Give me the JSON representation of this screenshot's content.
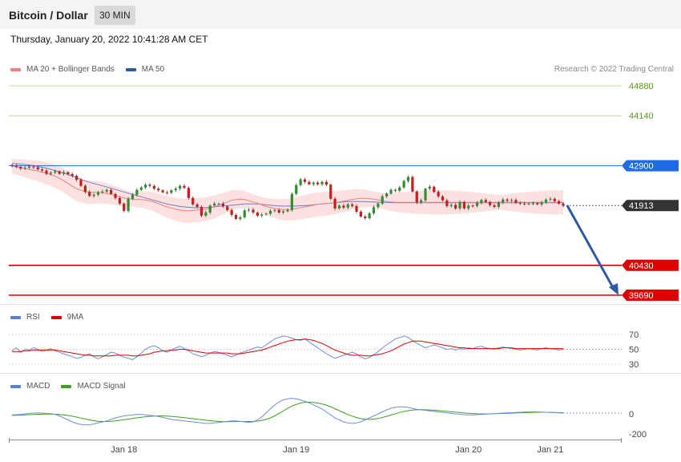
{
  "header": {
    "title": "Bitcoin / Dollar",
    "timeframe": "30 MIN"
  },
  "date_label": "Thursday, January 20, 2022 10:41:28 AM CET",
  "credit": "Research © 2022 Trading Central",
  "legends": {
    "price": [
      {
        "label": "MA 20 + Bollinger Bands",
        "color": "#f08080"
      },
      {
        "label": "MA 50",
        "color": "#2f5aa0"
      }
    ],
    "rsi": [
      {
        "label": "RSI",
        "color": "#5b7fd6"
      },
      {
        "label": "9MA",
        "color": "#e00000"
      }
    ],
    "macd": [
      {
        "label": "MACD",
        "color": "#5b7fd6"
      },
      {
        "label": "MACD Signal",
        "color": "#3aa020"
      }
    ]
  },
  "chart_data": [
    {
      "type": "candlestick",
      "panel": "price",
      "ylim": [
        39500,
        45000
      ],
      "current_price": "41913",
      "levels": [
        {
          "value": 44880,
          "label": "44880",
          "style": "resistance-light",
          "color": "#5a9a20"
        },
        {
          "value": 44140,
          "label": "44140",
          "style": "resistance-light",
          "color": "#5a9a20"
        },
        {
          "value": 42900,
          "label": "42900",
          "style": "pivot",
          "color": "#1e6be6"
        },
        {
          "value": 40430,
          "label": "40430",
          "style": "support",
          "color": "#e00000"
        },
        {
          "value": 39690,
          "label": "39690",
          "style": "support",
          "color": "#e00000"
        }
      ],
      "arrow": {
        "from": 41913,
        "to": 39690,
        "direction": "down",
        "color": "#2f5aa0"
      },
      "closes": [
        42900,
        42870,
        42830,
        42850,
        42880,
        42860,
        42810,
        42780,
        42700,
        42730,
        42760,
        42700,
        42740,
        42690,
        42650,
        42550,
        42400,
        42250,
        42150,
        42180,
        42240,
        42260,
        42300,
        42200,
        42100,
        41960,
        41780,
        42080,
        42180,
        42300,
        42360,
        42430,
        42400,
        42330,
        42290,
        42240,
        42230,
        42290,
        42330,
        42400,
        42350,
        42100,
        41940,
        41880,
        41660,
        41740,
        41910,
        41960,
        41960,
        41890,
        41800,
        41680,
        41580,
        41620,
        41790,
        41810,
        41740,
        41660,
        41690,
        41710,
        41780,
        41800,
        41740,
        41770,
        41800,
        42200,
        42420,
        42560,
        42500,
        42440,
        42480,
        42440,
        42500,
        42430,
        42080,
        41840,
        41910,
        41860,
        41940,
        41900,
        41760,
        41640,
        41600,
        41720,
        41870,
        41960,
        42140,
        42210,
        42300,
        42280,
        42360,
        42520,
        42620,
        42260,
        41990,
        42040,
        42330,
        42380,
        42250,
        42140,
        42040,
        41900,
        41930,
        41840,
        42000,
        41840,
        41910,
        41900,
        41980,
        42050,
        42000,
        41920,
        41880,
        41990,
        42060,
        42030,
        42050,
        41980,
        41960,
        41950,
        41960,
        41970,
        41940,
        41990,
        42060,
        42080,
        42020,
        41960,
        41913
      ],
      "ma20": [
        42890,
        42870,
        42850,
        42830,
        42810,
        42790,
        42770,
        42740,
        42710,
        42680,
        42640,
        42590,
        42530,
        42460,
        42390,
        42330,
        42290,
        42260,
        42240,
        42240,
        42240,
        42230,
        42210,
        42190,
        42160,
        42130,
        42100,
        42080,
        42070,
        42060,
        42060,
        42050,
        42030,
        42000,
        41960,
        41920,
        41880,
        41850,
        41820,
        41800,
        41780,
        41780,
        41790,
        41800,
        41810,
        41820,
        41850,
        41880,
        41920,
        41960,
        42000,
        42040,
        42060,
        42070,
        42060,
        42030,
        42000,
        41970,
        41930,
        41890,
        41860,
        41840,
        41820,
        41810,
        41810,
        41820,
        41840,
        41860,
        41880,
        41900,
        41920,
        41940,
        41950,
        41960,
        41970,
        41980,
        42000,
        42020,
        42040,
        42060,
        42080,
        42090,
        42090,
        42080,
        42070,
        42050,
        42030,
        42010,
        42000,
        41990,
        41990,
        41990,
        41990,
        41990,
        41990,
        41990,
        41990,
        41990,
        41990,
        41990,
        41990,
        41990,
        41990,
        41990,
        41990,
        41990,
        41990,
        41990,
        41990,
        41990,
        41990,
        41990,
        41990,
        41990,
        41990,
        41990,
        41990,
        41990,
        41990,
        41990,
        41990,
        41990,
        41990,
        41990,
        41990,
        41990,
        41990,
        41990,
        41990
      ],
      "ma50": [
        42960,
        42950,
        42940,
        42930,
        42920,
        42900,
        42880,
        42860,
        42840,
        42810,
        42780,
        42750,
        42720,
        42680,
        42640,
        42600,
        42560,
        42520,
        42490,
        42460,
        42430,
        42400,
        42370,
        42340,
        42310,
        42280,
        42250,
        42220,
        42190,
        42160,
        42130,
        42100,
        42070,
        42040,
        42010,
        41980,
        41950,
        41930,
        41910,
        41890,
        41880,
        41870,
        41860,
        41860,
        41860,
        41860,
        41870,
        41880,
        41890,
        41900,
        41910,
        41920,
        41930,
        41940,
        41950,
        41950,
        41950,
        41950,
        41940,
        41930,
        41920,
        41910,
        41900,
        41900,
        41900,
        41900,
        41900,
        41910,
        41910,
        41920,
        41930,
        41940,
        41950,
        41960,
        41970,
        41980,
        41990,
        42000,
        42010,
        42010,
        42010,
        42010,
        42010,
        42000,
        42000,
        41990,
        41990,
        41990,
        41980,
        41980,
        41980,
        41980,
        41980,
        41980,
        41980,
        41980,
        41980,
        41980,
        41980,
        41980,
        41980,
        41980,
        41980,
        41980,
        41980,
        41980,
        41980,
        41980,
        41980,
        41980,
        41980,
        41980,
        41980,
        41980,
        41980,
        41980,
        41980,
        41980,
        41980,
        41980,
        41980,
        41980,
        41980,
        41980,
        41980,
        41980,
        41980,
        41980,
        41980
      ]
    },
    {
      "type": "line",
      "panel": "rsi",
      "ylim": [
        20,
        80
      ],
      "ticks": [
        {
          "value": 70,
          "label": "70"
        },
        {
          "value": 50,
          "label": "50"
        },
        {
          "value": 30,
          "label": "30"
        }
      ],
      "rsi": [
        48,
        52,
        46,
        50,
        49,
        52,
        50,
        47,
        49,
        51,
        48,
        46,
        44,
        42,
        40,
        38,
        39,
        42,
        44,
        40,
        37,
        40,
        43,
        46,
        45,
        42,
        39,
        38,
        36,
        40,
        45,
        50,
        53,
        55,
        52,
        48,
        46,
        49,
        52,
        54,
        51,
        48,
        44,
        42,
        40,
        42,
        45,
        47,
        46,
        44,
        42,
        40,
        42,
        45,
        47,
        49,
        51,
        53,
        52,
        56,
        60,
        64,
        66,
        68,
        67,
        65,
        63,
        62,
        64,
        60,
        56,
        52,
        48,
        44,
        41,
        38,
        40,
        42,
        44,
        46,
        44,
        40,
        37,
        39,
        43,
        47,
        52,
        56,
        60,
        64,
        66,
        68,
        66,
        62,
        58,
        55,
        52,
        54,
        56,
        54,
        52,
        50,
        51,
        49,
        51,
        50,
        52,
        51,
        53,
        54,
        52,
        51,
        50,
        52,
        53,
        52,
        51,
        50,
        49,
        50,
        51,
        50,
        49,
        51,
        52,
        51,
        50,
        49,
        50
      ],
      "ma9": [
        47,
        47,
        47,
        48,
        48,
        49,
        49,
        49,
        49,
        49,
        49,
        48,
        47,
        46,
        45,
        44,
        43,
        42,
        42,
        41,
        41,
        41,
        41,
        41,
        42,
        42,
        42,
        42,
        41,
        41,
        42,
        43,
        44,
        46,
        47,
        48,
        48,
        49,
        49,
        50,
        50,
        49,
        48,
        47,
        46,
        45,
        45,
        45,
        45,
        45,
        45,
        44,
        44,
        44,
        45,
        46,
        47,
        48,
        49,
        51,
        53,
        55,
        57,
        59,
        61,
        62,
        63,
        63,
        64,
        63,
        62,
        60,
        58,
        55,
        52,
        49,
        47,
        45,
        43,
        42,
        42,
        42,
        41,
        41,
        42,
        43,
        44,
        46,
        48,
        51,
        54,
        57,
        59,
        61,
        61,
        61,
        60,
        59,
        58,
        57,
        56,
        55,
        54,
        53,
        52,
        52,
        51,
        51,
        51,
        51,
        51,
        51,
        51,
        51,
        52,
        52,
        52,
        51,
        51,
        51,
        51,
        51,
        51,
        51,
        51,
        51,
        51,
        51,
        51
      ]
    },
    {
      "type": "line",
      "panel": "macd",
      "ylim": [
        -260,
        200
      ],
      "ticks": [
        {
          "value": 0,
          "label": "0"
        },
        {
          "value": -200,
          "label": "-200"
        }
      ],
      "xticks": [
        {
          "index": 26,
          "label": "Jan 18"
        },
        {
          "index": 66,
          "label": "Jan 19"
        },
        {
          "index": 106,
          "label": "Jan 20"
        },
        {
          "index": 125,
          "label": "Jan 21"
        }
      ],
      "macd": [
        -10,
        -8,
        -5,
        0,
        5,
        8,
        10,
        8,
        5,
        2,
        -5,
        -20,
        -40,
        -60,
        -80,
        -95,
        -105,
        -110,
        -110,
        -100,
        -90,
        -80,
        -70,
        -55,
        -40,
        -30,
        -20,
        -15,
        -10,
        -5,
        -5,
        -10,
        -15,
        -20,
        -25,
        -35,
        -45,
        -55,
        -60,
        -65,
        -70,
        -75,
        -80,
        -85,
        -90,
        -95,
        -95,
        -90,
        -85,
        -80,
        -75,
        -70,
        -70,
        -75,
        -80,
        -85,
        -80,
        -60,
        -30,
        10,
        50,
        90,
        120,
        140,
        150,
        155,
        150,
        140,
        125,
        110,
        90,
        70,
        50,
        20,
        -10,
        -40,
        -60,
        -80,
        -90,
        -95,
        -90,
        -80,
        -60,
        -40,
        -20,
        0,
        20,
        40,
        55,
        65,
        70,
        70,
        65,
        55,
        45,
        40,
        35,
        30,
        25,
        20,
        15,
        10,
        5,
        0,
        -5,
        -8,
        -10,
        -10,
        -8,
        -5,
        -2,
        0,
        2,
        5,
        8,
        10,
        12,
        14,
        16,
        18,
        20,
        22,
        20,
        18,
        16,
        14,
        12,
        10,
        8
      ],
      "signal": [
        -15,
        -14,
        -12,
        -10,
        -8,
        -6,
        -4,
        -3,
        -2,
        -2,
        -3,
        -6,
        -10,
        -16,
        -23,
        -32,
        -42,
        -51,
        -60,
        -68,
        -74,
        -76,
        -76,
        -74,
        -70,
        -64,
        -58,
        -52,
        -46,
        -40,
        -34,
        -29,
        -25,
        -22,
        -20,
        -20,
        -22,
        -25,
        -29,
        -33,
        -38,
        -43,
        -48,
        -53,
        -58,
        -63,
        -68,
        -72,
        -75,
        -77,
        -78,
        -78,
        -77,
        -76,
        -76,
        -76,
        -75,
        -72,
        -65,
        -55,
        -40,
        -20,
        5,
        30,
        55,
        78,
        95,
        108,
        115,
        117,
        114,
        108,
        99,
        87,
        71,
        52,
        32,
        12,
        -6,
        -22,
        -36,
        -47,
        -53,
        -55,
        -52,
        -46,
        -36,
        -24,
        -11,
        2,
        14,
        24,
        32,
        38,
        41,
        42,
        41,
        39,
        36,
        33,
        29,
        25,
        21,
        17,
        13,
        9,
        6,
        3,
        1,
        0,
        0,
        1,
        2,
        3,
        4,
        5,
        7,
        9,
        11,
        12,
        14,
        15,
        16,
        16,
        16,
        15,
        14,
        13,
        12
      ]
    }
  ]
}
